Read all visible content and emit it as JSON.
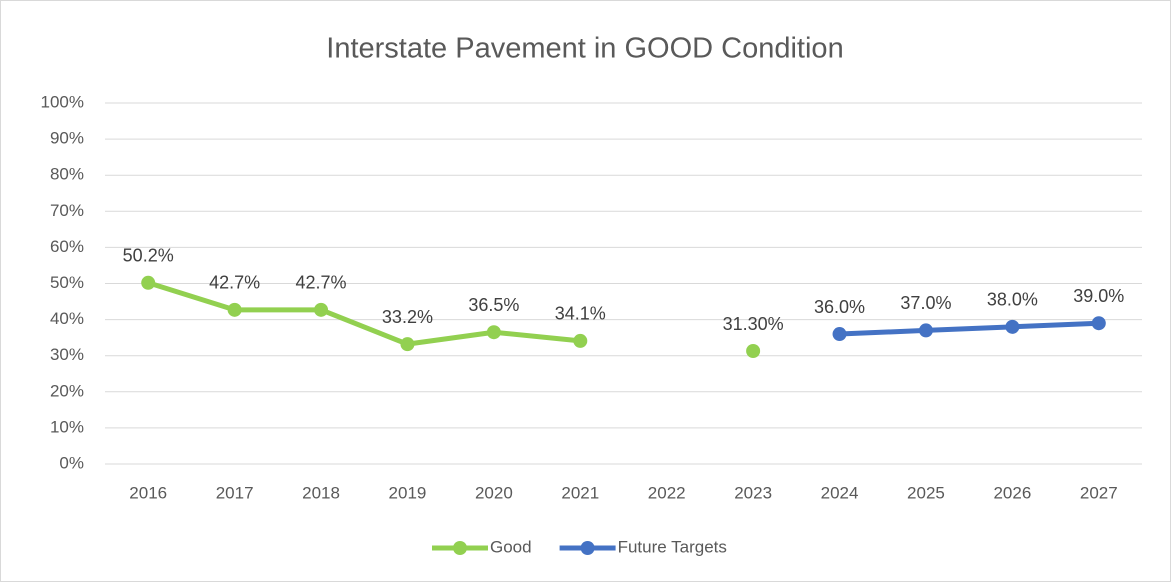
{
  "chart_data": {
    "type": "line",
    "title": "Interstate Pavement in GOOD Condition",
    "categories": [
      "2016",
      "2017",
      "2018",
      "2019",
      "2020",
      "2021",
      "2022",
      "2023",
      "2024",
      "2025",
      "2026",
      "2027"
    ],
    "series": [
      {
        "name": "Good",
        "color": "#92d050",
        "values": [
          50.2,
          42.7,
          42.7,
          33.2,
          36.5,
          34.1,
          null,
          31.3,
          null,
          null,
          null,
          null
        ],
        "value_labels": [
          "50.2%",
          "42.7%",
          "42.7%",
          "33.2%",
          "36.5%",
          "34.1%",
          null,
          "31.30%",
          null,
          null,
          null,
          null
        ]
      },
      {
        "name": "Future Targets",
        "color": "#4472c4",
        "values": [
          null,
          null,
          null,
          null,
          null,
          null,
          null,
          null,
          36.0,
          37.0,
          38.0,
          39.0
        ],
        "value_labels": [
          null,
          null,
          null,
          null,
          null,
          null,
          null,
          null,
          "36.0%",
          "37.0%",
          "38.0%",
          "39.0%"
        ]
      }
    ],
    "ylim": [
      0,
      100
    ],
    "yticks": [
      {
        "value": 0,
        "label": "0%"
      },
      {
        "value": 10,
        "label": "10%"
      },
      {
        "value": 20,
        "label": "20%"
      },
      {
        "value": 30,
        "label": "30%"
      },
      {
        "value": 40,
        "label": "40%"
      },
      {
        "value": 50,
        "label": "50%"
      },
      {
        "value": 60,
        "label": "60%"
      },
      {
        "value": 70,
        "label": "70%"
      },
      {
        "value": 80,
        "label": "80%"
      },
      {
        "value": 90,
        "label": "90%"
      },
      {
        "value": 100,
        "label": "100%"
      }
    ],
    "grid": true,
    "legend": "bottom"
  }
}
